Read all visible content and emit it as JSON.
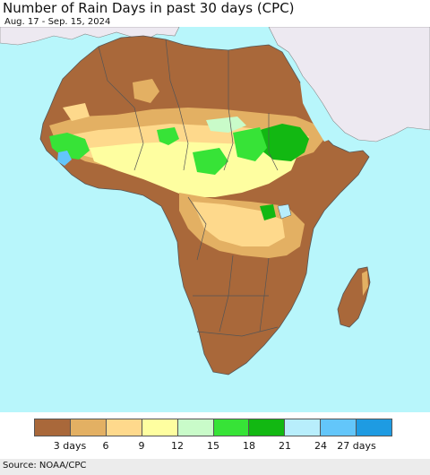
{
  "header": {
    "title": "Number of Rain Days in past 30 days (CPC)",
    "date_range": "Aug. 17 - Sep. 15, 2024"
  },
  "map": {
    "ocean_color": "#b8f6fb",
    "outside_land_color": "#ede9f1",
    "border_color": "#555555",
    "dominant_class_color": "#a9683a"
  },
  "legend": {
    "colors": [
      "#a9683a",
      "#e3b063",
      "#fed98c",
      "#fefea0",
      "#c9fbc9",
      "#37e337",
      "#12b812",
      "#b8eefc",
      "#63c6fa",
      "#1e9be2"
    ],
    "ticks": [
      "3 days",
      "6",
      "9",
      "12",
      "15",
      "18",
      "21",
      "24",
      "27 days"
    ]
  },
  "footer": {
    "source": "Source: NOAA/CPC"
  }
}
